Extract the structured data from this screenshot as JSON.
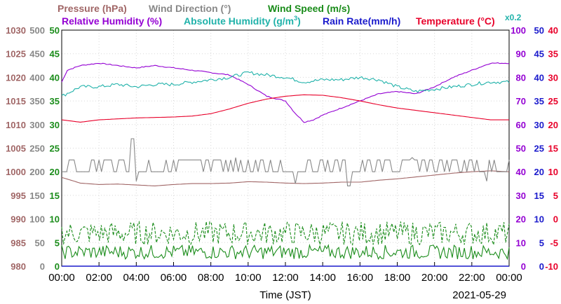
{
  "chart_data": {
    "type": "line",
    "xlabel": "Time (JST)",
    "date": "2021-05-29",
    "x_ticks": [
      "00:00",
      "02:00",
      "04:00",
      "06:00",
      "08:00",
      "10:00",
      "12:00",
      "14:00",
      "16:00",
      "18:00",
      "20:00",
      "22:00",
      "00:00"
    ],
    "colors": {
      "pressure": "#a06666",
      "wind_direction": "#888888",
      "wind_speed": "#1a8c1a",
      "humidity": "#9400d3",
      "abs_humidity": "#20b2aa",
      "rain": "#1a1acc",
      "temperature": "#e8002a"
    },
    "headers": {
      "pressure": "Pressure (hPa)",
      "wind_direction": "Wind Direction (°)",
      "wind_speed": "Wind Speed (m/s)",
      "humidity": "Relative Humidity (%)",
      "abs_humidity_prefix": "Absolute Humidity (g/m",
      "abs_humidity_sup": "3",
      "abs_humidity_suffix": ")",
      "rain": "Rain Rate(mm/h)",
      "temperature_prefix": "Temperature (",
      "temperature_suffix": "°C)",
      "abs_humidity_scale": "x0.2"
    },
    "axes": {
      "pressure": {
        "ticks": [
          "1030",
          "1025",
          "1020",
          "1015",
          "1010",
          "1005",
          "1000",
          "995",
          "990",
          "985",
          "980"
        ],
        "range": [
          980,
          1030
        ]
      },
      "wind_direction": {
        "ticks": [
          "500",
          "450",
          "400",
          "350",
          "300",
          "250",
          "200",
          "150",
          "100",
          "50",
          "0"
        ],
        "range": [
          0,
          500
        ]
      },
      "wind_speed": {
        "ticks": [
          "50",
          "45",
          "40",
          "35",
          "30",
          "25",
          "20",
          "15",
          "10",
          "5",
          "0"
        ],
        "range": [
          0,
          50
        ]
      },
      "humidity": {
        "ticks": [
          "100",
          "90",
          "80",
          "70",
          "60",
          "50",
          "40",
          "30",
          "20",
          "10",
          "0"
        ],
        "range": [
          0,
          100
        ]
      },
      "rain": {
        "ticks": [
          "50",
          "45",
          "40",
          "35",
          "30",
          "25",
          "20",
          "15",
          "10",
          "5",
          "0"
        ],
        "range": [
          0,
          50
        ]
      },
      "temperature": {
        "ticks": [
          "40",
          "35",
          "30",
          "25",
          "20",
          "15",
          "10",
          "5",
          "0",
          "-5",
          "-10"
        ],
        "range": [
          -10,
          40
        ]
      }
    },
    "series": [
      {
        "name": "Relative Humidity (%)",
        "axis": "humidity",
        "key": "humidity",
        "points": [
          [
            0,
            78
          ],
          [
            0.3,
            83
          ],
          [
            1,
            85
          ],
          [
            2,
            86
          ],
          [
            3,
            85
          ],
          [
            4,
            84
          ],
          [
            5,
            85
          ],
          [
            6,
            84
          ],
          [
            7,
            83
          ],
          [
            8,
            82
          ],
          [
            9,
            81
          ],
          [
            10,
            77
          ],
          [
            11,
            72
          ],
          [
            12,
            70
          ],
          [
            12.5,
            65
          ],
          [
            13,
            61
          ],
          [
            13.5,
            62
          ],
          [
            14,
            64
          ],
          [
            15,
            67
          ],
          [
            16,
            70
          ],
          [
            17,
            73
          ],
          [
            18,
            74
          ],
          [
            19,
            73
          ],
          [
            20,
            76
          ],
          [
            21,
            80
          ],
          [
            22,
            83
          ],
          [
            23,
            86
          ],
          [
            24,
            86
          ]
        ]
      },
      {
        "name": "Absolute Humidity (g/m3) x0.2",
        "axis": "humidity",
        "key": "abs_humidity",
        "points": [
          [
            0,
            72
          ],
          [
            1,
            76
          ],
          [
            2,
            76
          ],
          [
            3,
            77
          ],
          [
            4,
            76
          ],
          [
            5,
            77
          ],
          [
            6,
            77
          ],
          [
            7,
            78
          ],
          [
            8,
            79
          ],
          [
            9,
            80
          ],
          [
            10,
            82
          ],
          [
            11,
            81
          ],
          [
            12,
            80
          ],
          [
            13,
            78
          ],
          [
            14,
            79
          ],
          [
            15,
            79
          ],
          [
            16,
            80
          ],
          [
            17,
            79
          ],
          [
            18,
            76
          ],
          [
            19,
            74
          ],
          [
            20,
            75
          ],
          [
            21,
            76
          ],
          [
            22,
            77
          ],
          [
            23,
            78
          ],
          [
            24,
            78
          ]
        ]
      },
      {
        "name": "Temperature (°C)",
        "axis": "temperature",
        "key": "temperature",
        "points": [
          [
            0,
            21
          ],
          [
            1,
            20.5
          ],
          [
            2,
            21
          ],
          [
            3,
            21.2
          ],
          [
            4,
            21.4
          ],
          [
            5,
            21.5
          ],
          [
            6,
            21.6
          ],
          [
            7,
            21.8
          ],
          [
            8,
            22.3
          ],
          [
            9,
            23.3
          ],
          [
            10,
            24.5
          ],
          [
            11,
            25.4
          ],
          [
            12,
            26
          ],
          [
            13,
            26.3
          ],
          [
            14,
            26.2
          ],
          [
            15,
            25.7
          ],
          [
            16,
            25
          ],
          [
            17,
            24.2
          ],
          [
            18,
            23.5
          ],
          [
            19,
            23
          ],
          [
            20,
            22.5
          ],
          [
            21,
            22
          ],
          [
            22,
            21.5
          ],
          [
            23,
            21
          ],
          [
            24,
            21
          ]
        ]
      },
      {
        "name": "Pressure (hPa)",
        "axis": "pressure",
        "key": "pressure",
        "points": [
          [
            0,
            998.8
          ],
          [
            1,
            997.6
          ],
          [
            2,
            997.3
          ],
          [
            3,
            997.4
          ],
          [
            4,
            997.2
          ],
          [
            5,
            997
          ],
          [
            6,
            997.3
          ],
          [
            7,
            997.5
          ],
          [
            8,
            997.5
          ],
          [
            9,
            997.6
          ],
          [
            10,
            997.9
          ],
          [
            11,
            997.8
          ],
          [
            12,
            997.6
          ],
          [
            13,
            997.5
          ],
          [
            14,
            997.6
          ],
          [
            15,
            997.8
          ],
          [
            16,
            997.8
          ],
          [
            17,
            998.2
          ],
          [
            18,
            998.5
          ],
          [
            19,
            998.9
          ],
          [
            20,
            999.3
          ],
          [
            21,
            999.7
          ],
          [
            22,
            1000
          ],
          [
            23,
            1000.2
          ],
          [
            24,
            1000
          ]
        ]
      },
      {
        "name": "Wind Direction (°)",
        "axis": "wind_direction",
        "key": "wind_direction",
        "base": 200,
        "spikes": [
          [
            3.8,
            270
          ],
          [
            4.0,
            180
          ],
          [
            9.3,
            230
          ],
          [
            12.5,
            175
          ],
          [
            15.1,
            225
          ],
          [
            15.4,
            170
          ],
          [
            18.8,
            230
          ],
          [
            22.8,
            180
          ]
        ]
      },
      {
        "name": "Wind Speed (m/s) gust",
        "axis": "wind_speed",
        "key": "wind_speed",
        "style": "dashed",
        "mean": 7,
        "amp": 2.5
      },
      {
        "name": "Wind Speed (m/s)",
        "axis": "wind_speed",
        "key": "wind_speed",
        "style": "solid",
        "mean": 3,
        "amp": 1.5
      },
      {
        "name": "Rain Rate(mm/h)",
        "axis": "rain",
        "key": "rain",
        "points": [
          [
            0,
            0
          ],
          [
            24,
            0
          ]
        ]
      }
    ]
  }
}
